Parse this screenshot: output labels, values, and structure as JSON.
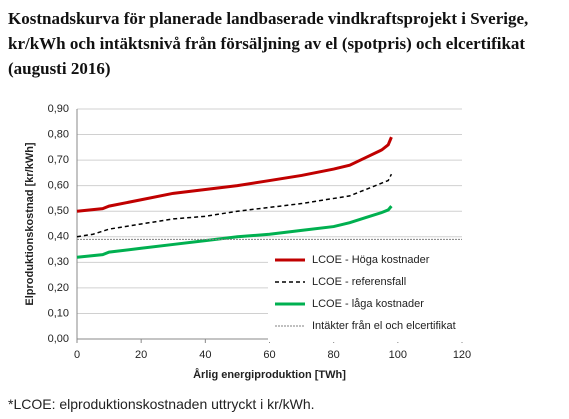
{
  "chart_data": {
    "type": "line",
    "title": "Kostnadskurva för planerade landbaserade vindkraftsprojekt i Sverige, kr/kWh och intäktsnivå från försäljning av el (spotpris) och elcertifikat (augusti 2016)",
    "xlabel": "Årlig energiproduktion [TWh]",
    "ylabel": "Elproduktionskostnad  [kr/kWh]",
    "note": "*LCOE: elproduktionskostnaden uttryckt i kr/kWh.",
    "xlim": [
      0,
      120
    ],
    "xticks": [
      0,
      20,
      40,
      60,
      80,
      100,
      120
    ],
    "ylim": [
      0,
      0.9
    ],
    "yticks": [
      {
        "value": 0,
        "label": "0,00"
      },
      {
        "value": 0.1,
        "label": "0,10"
      },
      {
        "value": 0.2,
        "label": "0,20"
      },
      {
        "value": 0.3,
        "label": "0,30"
      },
      {
        "value": 0.4,
        "label": "0,40"
      },
      {
        "value": 0.5,
        "label": "0,50"
      },
      {
        "value": 0.6,
        "label": "0,60"
      },
      {
        "value": 0.7,
        "label": "0,70"
      },
      {
        "value": 0.8,
        "label": "0,80"
      },
      {
        "value": 0.9,
        "label": "0,90"
      }
    ],
    "grid": true,
    "series": [
      {
        "name": "LCOE - Höga kostnader",
        "color": "#c00000",
        "width": 3,
        "dash": "none",
        "x": [
          0,
          8,
          10,
          20,
          30,
          40,
          50,
          60,
          70,
          80,
          85,
          90,
          95,
          97,
          98
        ],
        "values": [
          0.5,
          0.51,
          0.52,
          0.545,
          0.57,
          0.585,
          0.6,
          0.62,
          0.64,
          0.665,
          0.68,
          0.71,
          0.74,
          0.76,
          0.79
        ]
      },
      {
        "name": "LCOE - referensfall",
        "color": "#000000",
        "width": 1.5,
        "dash": "4 3",
        "x": [
          0,
          5,
          10,
          20,
          30,
          40,
          50,
          60,
          70,
          80,
          85,
          90,
          95,
          97,
          98
        ],
        "values": [
          0.4,
          0.41,
          0.43,
          0.45,
          0.47,
          0.48,
          0.5,
          0.515,
          0.53,
          0.55,
          0.56,
          0.585,
          0.61,
          0.62,
          0.645
        ]
      },
      {
        "name": "LCOE - låga kostnader",
        "color": "#00b050",
        "width": 3,
        "dash": "none",
        "x": [
          0,
          8,
          10,
          20,
          30,
          40,
          50,
          60,
          70,
          80,
          85,
          90,
          95,
          97,
          98
        ],
        "values": [
          0.32,
          0.33,
          0.34,
          0.355,
          0.37,
          0.385,
          0.4,
          0.41,
          0.425,
          0.44,
          0.455,
          0.475,
          0.495,
          0.505,
          0.52
        ]
      },
      {
        "name": "Intäkter från el och elcertifikat",
        "color": "#808080",
        "width": 1,
        "dash": "2 1",
        "x": [
          0,
          120
        ],
        "values": [
          0.39,
          0.39
        ]
      }
    ]
  }
}
